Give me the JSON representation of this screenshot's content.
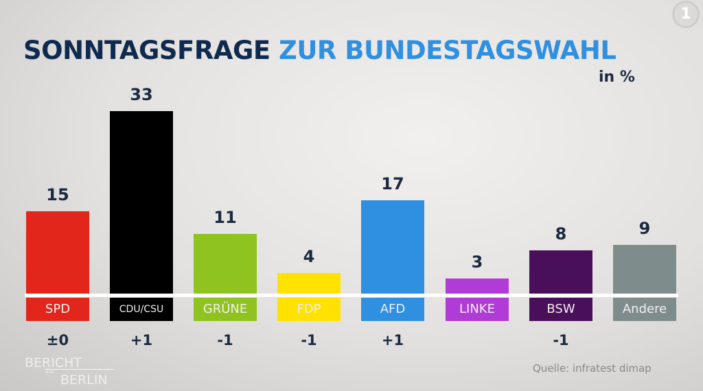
{
  "chart_data": {
    "type": "bar",
    "title": "SONNTAGSFRAGE",
    "title_highlight": "ZUR BUNDESTAGSWAHL",
    "unit": "in %",
    "categories": [
      "SPD",
      "CDU/CSU",
      "GRÜNE",
      "FDP",
      "AFD",
      "LINKE",
      "BSW",
      "Andere"
    ],
    "values": [
      15,
      33,
      11,
      4,
      17,
      3,
      8,
      9
    ],
    "changes": [
      "±0",
      "+1",
      "-1",
      "-1",
      "+1",
      "",
      "-1",
      ""
    ],
    "colors": [
      "#e3261b",
      "#000000",
      "#8fc31f",
      "#ffe200",
      "#2f8fe0",
      "#b13bd6",
      "#4a0f5a",
      "#7f8c8c"
    ],
    "ylim": [
      0,
      33
    ],
    "source": "Quelle: infratest dimap"
  },
  "branding": {
    "channel_logo": "1",
    "program": "BERICHT",
    "program_small": "aus",
    "program2": "BERLIN"
  }
}
